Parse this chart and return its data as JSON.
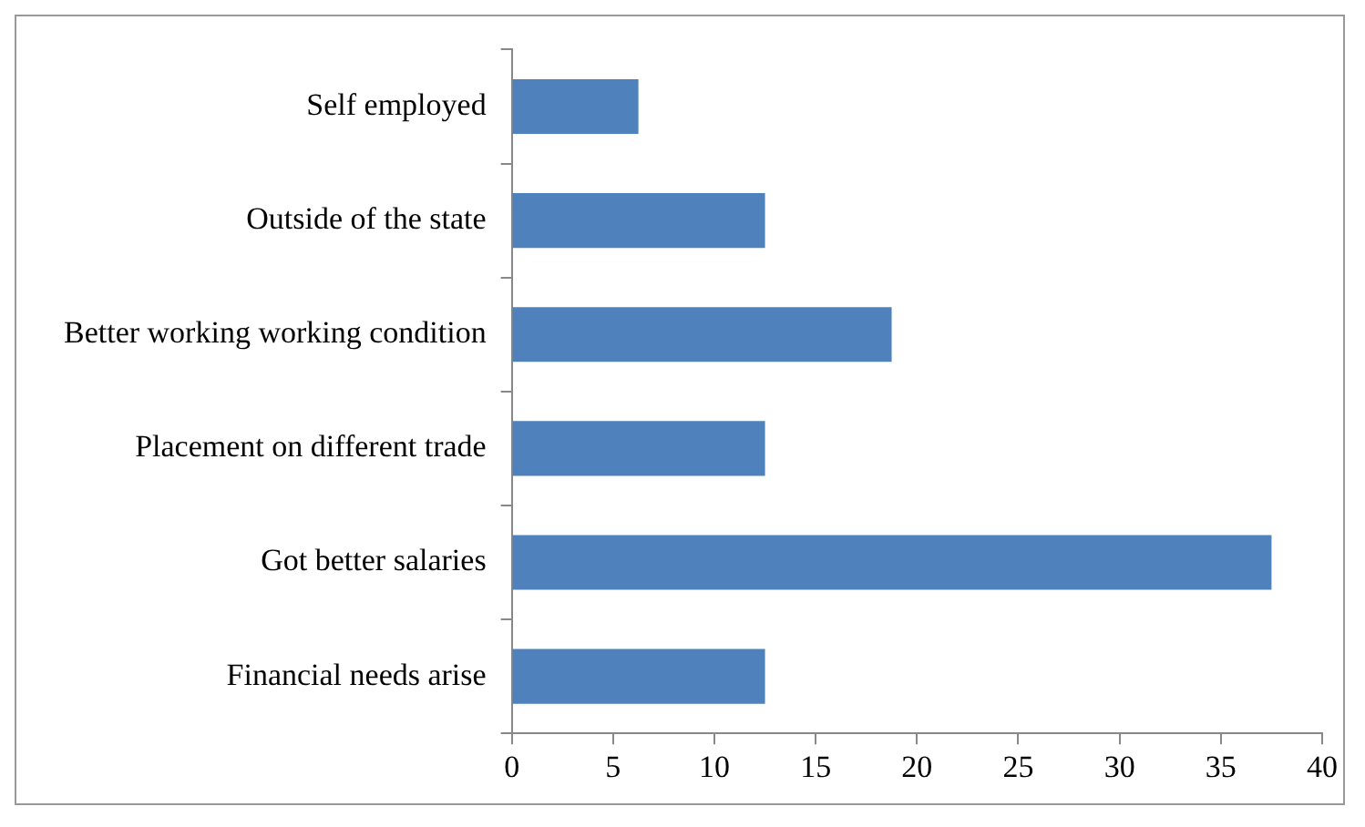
{
  "chart_data": {
    "type": "bar",
    "orientation": "horizontal",
    "categories": [
      "Self employed",
      "Outside of the state",
      "Better working working condition",
      "Placement on different trade",
      "Got better salaries",
      "Financial needs arise"
    ],
    "values": [
      6.25,
      12.5,
      18.75,
      12.5,
      37.5,
      12.5
    ],
    "color": "#4f81bd",
    "xlim": [
      0,
      40
    ],
    "xticks": [
      0,
      5,
      10,
      15,
      20,
      25,
      30,
      35,
      40
    ],
    "grid": false,
    "legend": false
  }
}
